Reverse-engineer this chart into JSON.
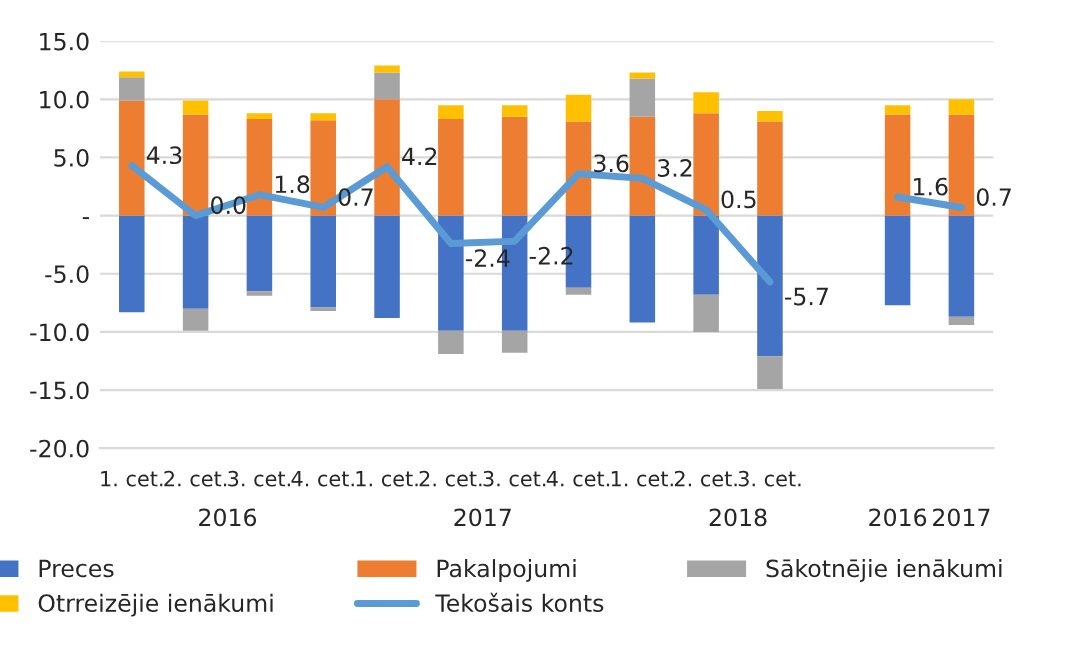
{
  "chart_data": {
    "type": "bar",
    "stacked": true,
    "categories": [
      "1. cet.",
      "2. cet.",
      "3. cet.",
      "4. cet.",
      "1. cet.",
      "2. cet.",
      "3. cet.",
      "4. cet.",
      "1. cet.",
      "2. cet.",
      "3. cet.",
      null,
      null,
      null
    ],
    "annotations": [
      "2016",
      "2017",
      "2018",
      "2016",
      "2017"
    ],
    "series": [
      {
        "name": "Preces",
        "color": "#4472c4",
        "values": [
          -8.3,
          -8.0,
          -6.5,
          -7.9,
          -8.8,
          -9.9,
          -9.9,
          -6.2,
          -9.2,
          -6.8,
          -12.1,
          null,
          -7.7,
          -8.7
        ]
      },
      {
        "name": "Pakalpojumi",
        "color": "#ed7d31",
        "values": [
          9.9,
          8.7,
          8.3,
          8.2,
          10.0,
          8.3,
          8.5,
          8.1,
          8.5,
          8.8,
          8.1,
          null,
          8.7,
          8.7
        ]
      },
      {
        "name": "Sākotnējie ienākumi",
        "color": "#a5a5a5",
        "values": [
          2.0,
          -1.9,
          -0.4,
          -0.3,
          2.3,
          -2.0,
          -1.9,
          -0.6,
          3.3,
          -3.2,
          -2.8,
          null,
          null,
          -0.7
        ]
      },
      {
        "name": "Otrreizējie ienākumi",
        "color": "#ffc000",
        "values": [
          0.5,
          1.2,
          0.5,
          0.6,
          0.6,
          1.2,
          1.0,
          2.3,
          0.5,
          1.8,
          0.9,
          null,
          0.8,
          1.3
        ]
      },
      {
        "name": "Tekošais konts",
        "type": "line",
        "color": "#5b9bd5",
        "values": [
          4.3,
          0.0,
          1.8,
          0.7,
          4.2,
          -2.4,
          -2.2,
          3.6,
          3.2,
          0.5,
          -5.7,
          null,
          1.6,
          0.7
        ],
        "value_labels": [
          "4.3",
          "0.0",
          "1.8",
          "0.7",
          "4.2",
          "-2.4",
          "-2.2",
          "3.6",
          "3.2",
          "0.5",
          "-5.7",
          null,
          "1.6",
          "0.7"
        ]
      }
    ],
    "ylim": [
      -20,
      15
    ],
    "yticks": [
      {
        "value": -20,
        "label": "-20.0"
      },
      {
        "value": -15,
        "label": "-15.0"
      },
      {
        "value": -10,
        "label": "-10.0"
      },
      {
        "value": -5,
        "label": "-5.0"
      },
      {
        "value": 0,
        "label": "-"
      },
      {
        "value": 5,
        "label": "5.0"
      },
      {
        "value": 10,
        "label": "10.0"
      },
      {
        "value": 15,
        "label": "15.0"
      }
    ],
    "grid": "y",
    "legend": "bottom"
  }
}
